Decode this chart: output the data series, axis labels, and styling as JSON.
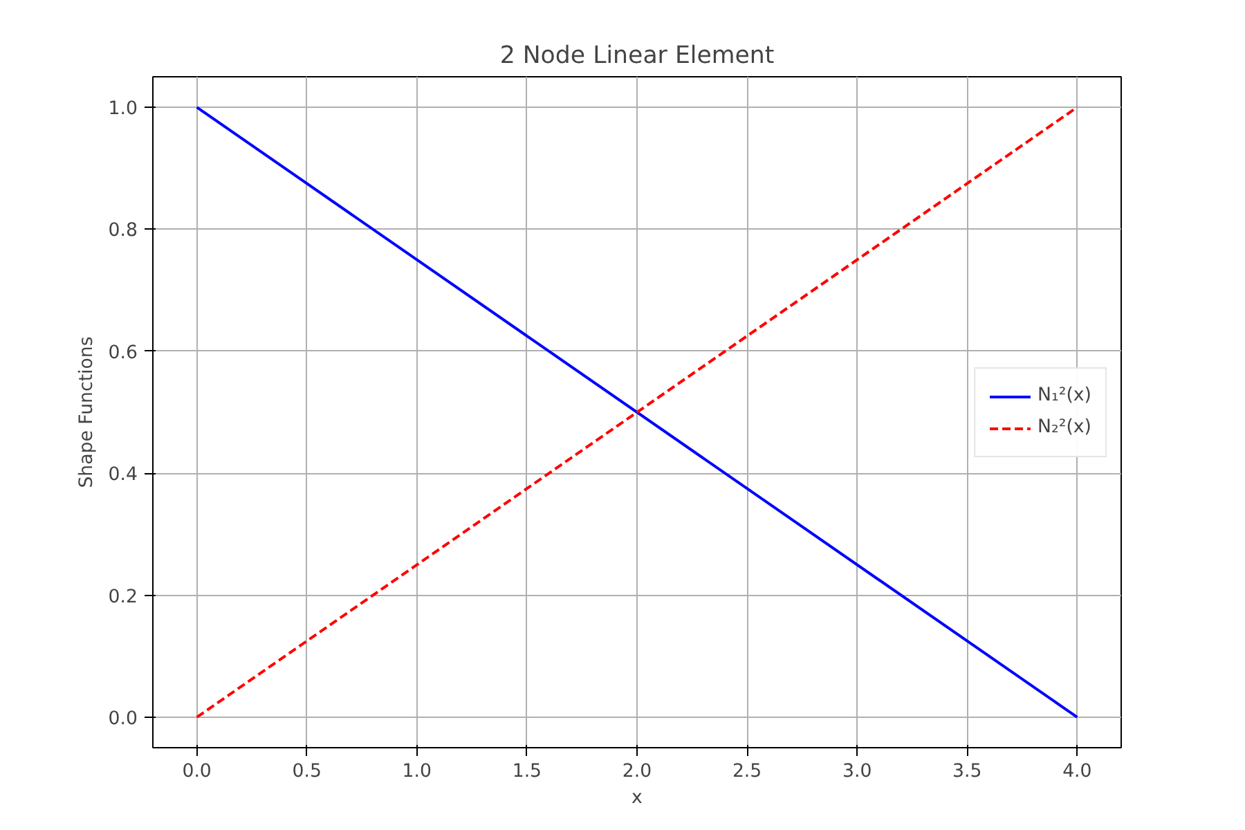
{
  "chart_data": {
    "type": "line",
    "title": "2 Node Linear Element",
    "xlabel": "x",
    "ylabel": "Shape Functions",
    "x": [
      0,
      4
    ],
    "series": [
      {
        "name": "N₁²(x)",
        "color": "#0000ff",
        "values": [
          1,
          0
        ],
        "line_style": "solid"
      },
      {
        "name": "N₂²(x)",
        "color": "#ff0000",
        "values": [
          0,
          1
        ],
        "line_style": "dashed"
      }
    ],
    "xlim": [
      -0.2,
      4.2
    ],
    "ylim": [
      -0.05,
      1.05
    ],
    "xticks": [
      {
        "value": 0,
        "label": "0.0"
      },
      {
        "value": 0.5,
        "label": "0.5"
      },
      {
        "value": 1,
        "label": "1.0"
      },
      {
        "value": 1.5,
        "label": "1.5"
      },
      {
        "value": 2,
        "label": "2.0"
      },
      {
        "value": 2.5,
        "label": "2.5"
      },
      {
        "value": 3,
        "label": "3.0"
      },
      {
        "value": 3.5,
        "label": "3.5"
      },
      {
        "value": 4,
        "label": "4.0"
      }
    ],
    "yticks": [
      {
        "value": 0,
        "label": "0.0"
      },
      {
        "value": 0.2,
        "label": "0.2"
      },
      {
        "value": 0.4,
        "label": "0.4"
      },
      {
        "value": 0.6,
        "label": "0.6"
      },
      {
        "value": 0.8,
        "label": "0.8"
      },
      {
        "value": 1,
        "label": "1.0"
      }
    ],
    "grid": true,
    "legend": "right",
    "marker": "none"
  }
}
